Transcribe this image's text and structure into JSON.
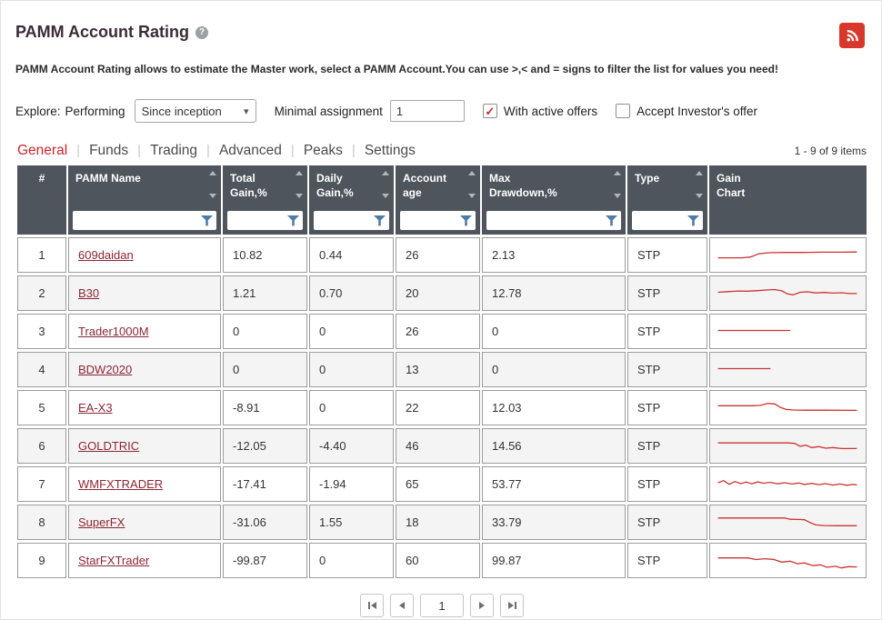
{
  "header": {
    "title": "PAMM Account Rating",
    "description": "PAMM Account Rating allows to estimate the Master work, select a PAMM Account.You can use >,< and = signs to filter the list for values you need!"
  },
  "icons": {
    "help": "?",
    "chevron_down": "▾",
    "check": "✓",
    "rss": "rss-feed",
    "filter": "funnel",
    "sort": "up-down-arrows"
  },
  "filters": {
    "explore_label": "Explore:",
    "performing_label": "Performing",
    "period_value": "Since inception",
    "minimal_assignment_label": "Minimal assignment",
    "minimal_assignment_value": "1",
    "with_active_offers_label": "With active offers",
    "with_active_offers_checked": true,
    "accept_investors_offer_label": "Accept Investor's offer",
    "accept_investors_offer_checked": false
  },
  "tabs": [
    {
      "label": "General",
      "active": true
    },
    {
      "label": "Funds",
      "active": false
    },
    {
      "label": "Trading",
      "active": false
    },
    {
      "label": "Advanced",
      "active": false
    },
    {
      "label": "Peaks",
      "active": false
    },
    {
      "label": "Settings",
      "active": false
    }
  ],
  "tab_separator": "|",
  "table": {
    "items_count": "1 - 9 of 9 items",
    "columns": [
      {
        "label": "#"
      },
      {
        "label": "PAMM Name"
      },
      {
        "label": "Total Gain,%"
      },
      {
        "label": "Daily Gain,%"
      },
      {
        "label": "Account age"
      },
      {
        "label": "Max Drawdown,%"
      },
      {
        "label": "Type"
      },
      {
        "label": "Gain Chart"
      }
    ],
    "rows": [
      {
        "num": "1",
        "name": "609daidan",
        "total_gain": "10.82",
        "daily_gain": "0.44",
        "account_age": "26",
        "max_drawdown": "2.13",
        "type": "STP",
        "spark": [
          [
            1,
            32
          ],
          [
            18,
            32
          ],
          [
            24,
            36
          ],
          [
            30,
            52
          ],
          [
            38,
            57
          ],
          [
            50,
            58
          ],
          [
            62,
            58
          ],
          [
            75,
            59
          ],
          [
            88,
            59
          ],
          [
            99,
            60
          ]
        ]
      },
      {
        "num": "2",
        "name": "B30",
        "total_gain": "1.21",
        "daily_gain": "0.70",
        "account_age": "20",
        "max_drawdown": "12.78",
        "type": "STP",
        "spark": [
          [
            1,
            50
          ],
          [
            8,
            53
          ],
          [
            15,
            56
          ],
          [
            22,
            55
          ],
          [
            29,
            58
          ],
          [
            35,
            61
          ],
          [
            41,
            63
          ],
          [
            46,
            57
          ],
          [
            50,
            42
          ],
          [
            54,
            38
          ],
          [
            59,
            50
          ],
          [
            64,
            52
          ],
          [
            70,
            47
          ],
          [
            76,
            49
          ],
          [
            82,
            46
          ],
          [
            88,
            48
          ],
          [
            94,
            44
          ],
          [
            99,
            44
          ]
        ]
      },
      {
        "num": "3",
        "name": "Trader1000M",
        "total_gain": "0",
        "daily_gain": "0",
        "account_age": "26",
        "max_drawdown": "0",
        "type": "STP",
        "spark": [
          [
            1,
            50
          ],
          [
            52,
            50
          ]
        ]
      },
      {
        "num": "4",
        "name": "BDW2020",
        "total_gain": "0",
        "daily_gain": "0",
        "account_age": "13",
        "max_drawdown": "0",
        "type": "STP",
        "spark": [
          [
            1,
            50
          ],
          [
            38,
            50
          ]
        ]
      },
      {
        "num": "5",
        "name": "EA-X3",
        "total_gain": "-8.91",
        "daily_gain": "0",
        "account_age": "22",
        "max_drawdown": "12.03",
        "type": "STP",
        "spark": [
          [
            1,
            55
          ],
          [
            25,
            55
          ],
          [
            31,
            57
          ],
          [
            36,
            66
          ],
          [
            41,
            64
          ],
          [
            45,
            48
          ],
          [
            49,
            38
          ],
          [
            54,
            35
          ],
          [
            62,
            34
          ],
          [
            75,
            34
          ],
          [
            99,
            33
          ]
        ]
      },
      {
        "num": "6",
        "name": "GOLDTRIC",
        "total_gain": "-12.05",
        "daily_gain": "-4.40",
        "account_age": "46",
        "max_drawdown": "14.56",
        "type": "STP",
        "spark": [
          [
            1,
            60
          ],
          [
            40,
            60
          ],
          [
            50,
            60
          ],
          [
            55,
            58
          ],
          [
            59,
            44
          ],
          [
            63,
            49
          ],
          [
            67,
            38
          ],
          [
            72,
            42
          ],
          [
            77,
            35
          ],
          [
            82,
            38
          ],
          [
            88,
            33
          ],
          [
            99,
            33
          ]
        ]
      },
      {
        "num": "7",
        "name": "WMFXTRADER",
        "total_gain": "-17.41",
        "daily_gain": "-1.94",
        "account_age": "65",
        "max_drawdown": "53.77",
        "type": "STP",
        "spark": [
          [
            1,
            52
          ],
          [
            5,
            62
          ],
          [
            9,
            45
          ],
          [
            13,
            58
          ],
          [
            17,
            48
          ],
          [
            21,
            55
          ],
          [
            25,
            47
          ],
          [
            29,
            56
          ],
          [
            33,
            50
          ],
          [
            38,
            54
          ],
          [
            43,
            47
          ],
          [
            48,
            52
          ],
          [
            53,
            46
          ],
          [
            58,
            51
          ],
          [
            62,
            44
          ],
          [
            67,
            49
          ],
          [
            72,
            43
          ],
          [
            77,
            48
          ],
          [
            82,
            41
          ],
          [
            87,
            46
          ],
          [
            92,
            40
          ],
          [
            96,
            44
          ],
          [
            99,
            42
          ]
        ]
      },
      {
        "num": "8",
        "name": "SuperFX",
        "total_gain": "-31.06",
        "daily_gain": "1.55",
        "account_age": "18",
        "max_drawdown": "33.79",
        "type": "STP",
        "spark": [
          [
            1,
            66
          ],
          [
            42,
            66
          ],
          [
            48,
            66
          ],
          [
            52,
            60
          ],
          [
            58,
            59
          ],
          [
            62,
            58
          ],
          [
            66,
            44
          ],
          [
            70,
            33
          ],
          [
            76,
            30
          ],
          [
            84,
            29
          ],
          [
            99,
            29
          ]
        ]
      },
      {
        "num": "9",
        "name": "StarFXTrader",
        "total_gain": "-99.87",
        "daily_gain": "0",
        "account_age": "60",
        "max_drawdown": "99.87",
        "type": "STP",
        "spark": [
          [
            1,
            58
          ],
          [
            22,
            58
          ],
          [
            28,
            50
          ],
          [
            34,
            54
          ],
          [
            40,
            51
          ],
          [
            46,
            38
          ],
          [
            52,
            42
          ],
          [
            57,
            30
          ],
          [
            62,
            34
          ],
          [
            68,
            21
          ],
          [
            73,
            25
          ],
          [
            78,
            13
          ],
          [
            84,
            18
          ],
          [
            88,
            10
          ],
          [
            93,
            16
          ],
          [
            99,
            15
          ]
        ]
      }
    ]
  },
  "pagination": {
    "page": "1"
  },
  "colors": {
    "accent_red": "#c8262d",
    "link": "#8c2633",
    "header_bg": "#4e555c",
    "sparkline": "#cc3333",
    "rss_bg": "#d8382b",
    "funnel": "#4e7ca9"
  }
}
